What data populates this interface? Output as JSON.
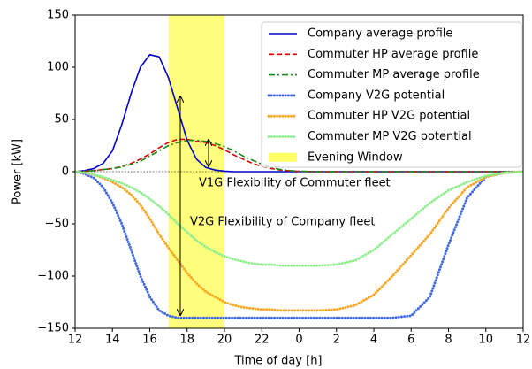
{
  "chart_data": {
    "type": "line",
    "xlabel": "Time of day [h]",
    "ylabel": "Power [kW]",
    "xlim": [
      12,
      36
    ],
    "xticks": [
      12,
      14,
      16,
      18,
      20,
      22,
      {
        "value": 24,
        "label": "0"
      },
      {
        "value": 26,
        "label": "2"
      },
      {
        "value": 28,
        "label": "4"
      },
      {
        "value": 30,
        "label": "6"
      },
      {
        "value": 32,
        "label": "8"
      },
      {
        "value": 34,
        "label": "10"
      },
      {
        "value": 36,
        "label": "12"
      }
    ],
    "ylim": [
      -150,
      150
    ],
    "yticks": [
      {
        "value": -150,
        "label": "−150"
      },
      {
        "value": -100,
        "label": "−100"
      },
      {
        "value": -50,
        "label": "−50"
      },
      0,
      50,
      100,
      150
    ],
    "legend": "upper right",
    "hlines": [
      0
    ],
    "span": {
      "name": "Evening Window",
      "color": "#ffff66",
      "x": [
        17,
        20
      ]
    },
    "annotations": [
      "V1G Flexibility of Commuter fleet",
      "V2G Flexibility of Company fleet"
    ],
    "x": [
      12,
      12.5,
      13,
      13.5,
      14,
      14.5,
      15,
      15.5,
      16,
      16.5,
      17,
      17.5,
      18,
      18.5,
      19,
      19.5,
      20,
      20.5,
      21,
      21.5,
      22,
      22.5,
      23,
      23.5,
      24,
      25,
      26,
      27,
      28,
      29,
      30,
      31,
      32,
      33,
      34,
      35,
      36
    ],
    "series": [
      {
        "name": "Company average profile",
        "color": "#0000cc",
        "style": "solid",
        "values": [
          0,
          1,
          3,
          8,
          20,
          45,
          75,
          100,
          112,
          110,
          90,
          60,
          30,
          12,
          4,
          1.5,
          0.5,
          0,
          0,
          0,
          0,
          0,
          0,
          0,
          0,
          0,
          0,
          0,
          0,
          0,
          0,
          0,
          0,
          0,
          0,
          0,
          0
        ]
      },
      {
        "name": "Commuter HP average profile",
        "color": "#e00000",
        "style": "dashed",
        "values": [
          0,
          0.5,
          1,
          2,
          3,
          5,
          8,
          12,
          17,
          23,
          28,
          31,
          31,
          29,
          28,
          25,
          21,
          16,
          12,
          8,
          5,
          3,
          1.5,
          0.8,
          0.3,
          0,
          0,
          0,
          0,
          0,
          0,
          0,
          0,
          0,
          0,
          0,
          0
        ]
      },
      {
        "name": "Commuter MP average profile",
        "color": "#1a8a1a",
        "style": "dashdot",
        "values": [
          0,
          0.5,
          1,
          2,
          3,
          4.5,
          7,
          10,
          15,
          20,
          25,
          28,
          30,
          30,
          29,
          27,
          24,
          20,
          15,
          11,
          7,
          4,
          2,
          1,
          0.5,
          0,
          0,
          0,
          0,
          0,
          0,
          0,
          0,
          0,
          0,
          0,
          0
        ]
      },
      {
        "name": "Company V2G potential",
        "color": "#4169e1",
        "style": "dotted",
        "values": [
          0,
          -2,
          -6,
          -15,
          -30,
          -50,
          -75,
          -100,
          -120,
          -133,
          -138,
          -140,
          -140,
          -140,
          -140,
          -140,
          -140,
          -140,
          -140,
          -140,
          -140,
          -140,
          -140,
          -140,
          -140,
          -140,
          -140,
          -140,
          -140,
          -140,
          -138,
          -120,
          -70,
          -25,
          -5,
          -1,
          0
        ]
      },
      {
        "name": "Commuter HP V2G potential",
        "color": "#f5a623",
        "style": "dotted",
        "values": [
          0,
          -1,
          -3,
          -6,
          -10,
          -15,
          -22,
          -32,
          -45,
          -60,
          -73,
          -85,
          -97,
          -107,
          -115,
          -120,
          -125,
          -128,
          -130,
          -131,
          -132,
          -132,
          -133,
          -133,
          -133,
          -133,
          -132,
          -128,
          -118,
          -100,
          -80,
          -60,
          -35,
          -15,
          -5,
          -1,
          0
        ]
      },
      {
        "name": "Commuter MP V2G potential",
        "color": "#90ee90",
        "style": "dotted",
        "values": [
          0,
          -1,
          -3,
          -5,
          -8,
          -11,
          -15,
          -20,
          -26,
          -33,
          -41,
          -50,
          -58,
          -66,
          -72,
          -77,
          -81,
          -84,
          -86,
          -88,
          -89,
          -89,
          -90,
          -90,
          -90,
          -90,
          -89,
          -85,
          -75,
          -60,
          -45,
          -30,
          -18,
          -10,
          -4,
          -1,
          0
        ]
      }
    ]
  }
}
